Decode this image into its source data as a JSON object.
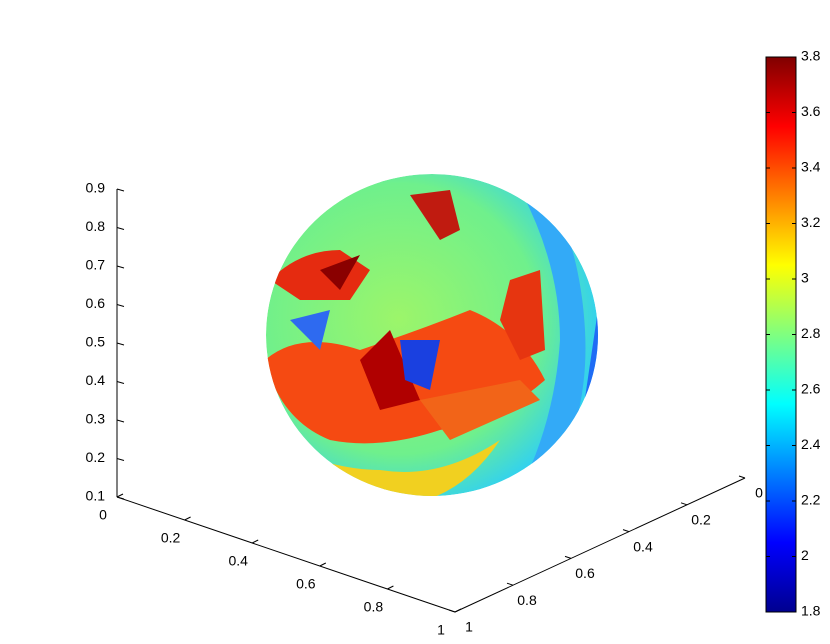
{
  "chart_data": {
    "type": "surface",
    "colormap": "jet",
    "xlim": [
      0,
      1
    ],
    "xticks": [
      0,
      0.2,
      0.4,
      0.6,
      0.8,
      1
    ],
    "ylim": [
      0,
      1
    ],
    "yticks": [
      0,
      0.2,
      0.4,
      0.6,
      0.8,
      1
    ],
    "zlim": [
      0.1,
      0.9
    ],
    "zticks": [
      0.1,
      0.2,
      0.3,
      0.4,
      0.5,
      0.6,
      0.7,
      0.8,
      0.9
    ],
    "clim": [
      1.8,
      3.8
    ],
    "cticks": [
      1.8,
      2,
      2.2,
      2.4,
      2.6,
      2.8,
      3,
      3.2,
      3.4,
      3.6,
      3.8
    ]
  }
}
